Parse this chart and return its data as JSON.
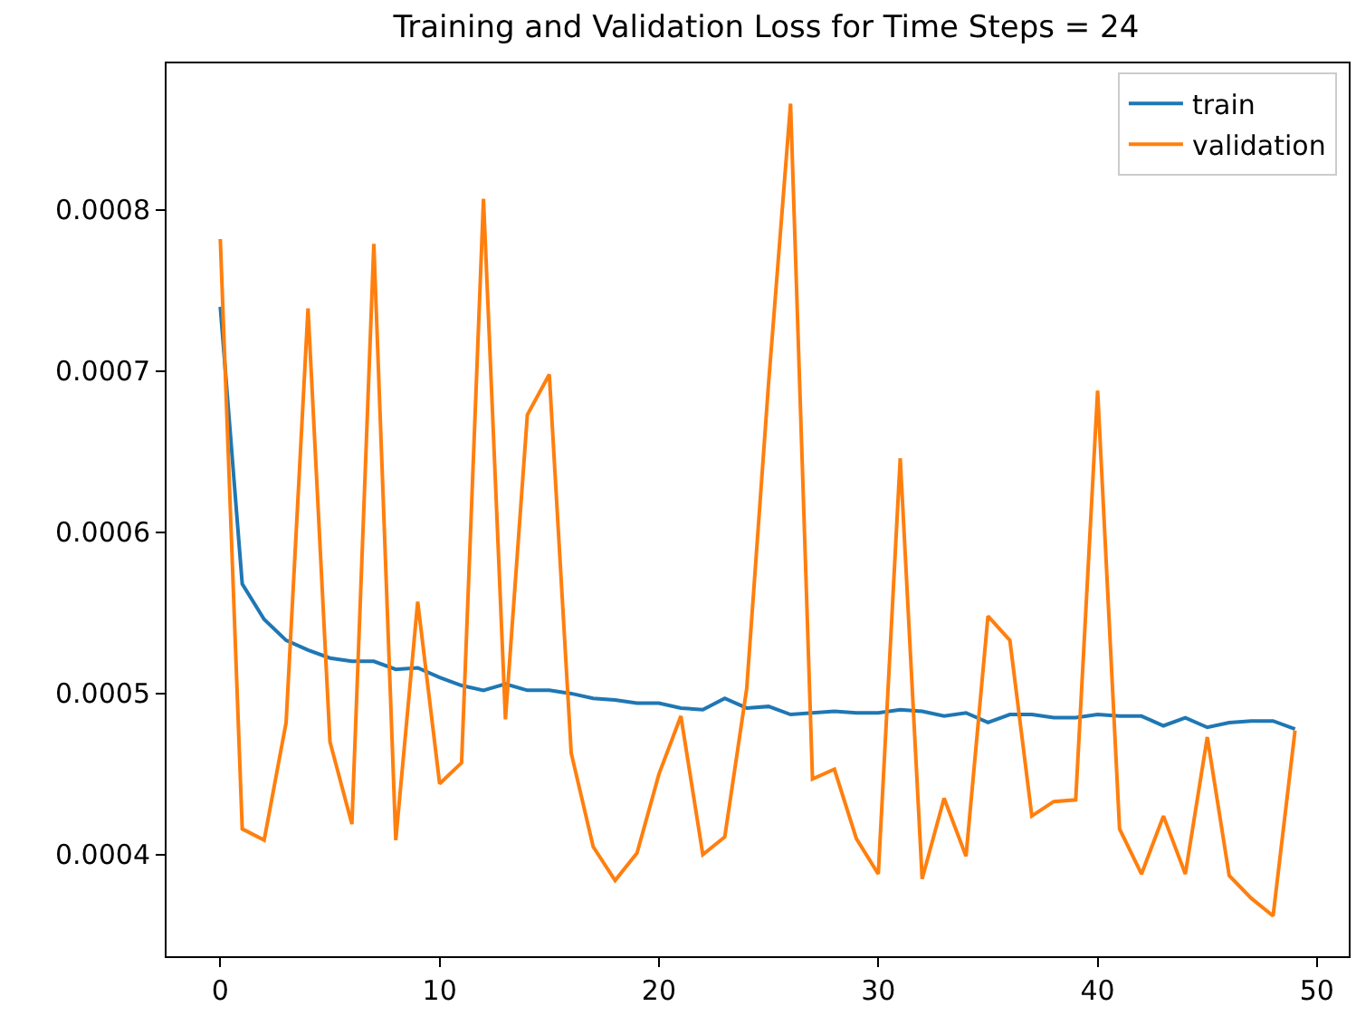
{
  "chart_data": {
    "type": "line",
    "title": "Training and Validation Loss for Time Steps = 24",
    "x": [
      0,
      1,
      2,
      3,
      4,
      5,
      6,
      7,
      8,
      9,
      10,
      11,
      12,
      13,
      14,
      15,
      16,
      17,
      18,
      19,
      20,
      21,
      22,
      23,
      24,
      25,
      26,
      27,
      28,
      29,
      30,
      31,
      32,
      33,
      34,
      35,
      36,
      37,
      38,
      39,
      40,
      41,
      42,
      43,
      44,
      45,
      46,
      47,
      48,
      49
    ],
    "series": [
      {
        "name": "train",
        "color": "#1f77b4",
        "values": [
          0.00074,
          0.000568,
          0.000546,
          0.000533,
          0.000527,
          0.000522,
          0.00052,
          0.00052,
          0.000515,
          0.000516,
          0.00051,
          0.000505,
          0.000502,
          0.000506,
          0.000502,
          0.000502,
          0.0005,
          0.000497,
          0.000496,
          0.000494,
          0.000494,
          0.000491,
          0.00049,
          0.000497,
          0.000491,
          0.000492,
          0.000487,
          0.000488,
          0.000489,
          0.000488,
          0.000488,
          0.00049,
          0.000489,
          0.000486,
          0.000488,
          0.000482,
          0.000487,
          0.000487,
          0.000485,
          0.000485,
          0.000487,
          0.000486,
          0.000486,
          0.00048,
          0.000485,
          0.000479,
          0.000482,
          0.000483,
          0.000483,
          0.000478
        ]
      },
      {
        "name": "validation",
        "color": "#ff7f0e",
        "values": [
          0.000782,
          0.000416,
          0.000409,
          0.000482,
          0.000739,
          0.00047,
          0.000419,
          0.000779,
          0.000409,
          0.000557,
          0.000444,
          0.000457,
          0.000807,
          0.000484,
          0.000673,
          0.000698,
          0.000463,
          0.000405,
          0.000384,
          0.000401,
          0.00045,
          0.000486,
          0.0004,
          0.000411,
          0.000503,
          0.000693,
          0.000866,
          0.000447,
          0.000453,
          0.00041,
          0.000388,
          0.000646,
          0.000385,
          0.000435,
          0.000399,
          0.000548,
          0.000533,
          0.000424,
          0.000433,
          0.000434,
          0.000688,
          0.000416,
          0.000388,
          0.000424,
          0.000388,
          0.000473,
          0.000387,
          0.000373,
          0.000362,
          0.000477
        ]
      }
    ],
    "xlim": [
      -2.45,
      51.45
    ],
    "xticks": [
      0,
      10,
      20,
      30,
      40,
      50
    ],
    "ylim": [
      0.000337,
      0.000891
    ],
    "yticks": [
      0.0004,
      0.0005,
      0.0006,
      0.0007,
      0.0008
    ],
    "grid": false,
    "legend": "top right",
    "marker": "none",
    "line_style": "solid"
  }
}
